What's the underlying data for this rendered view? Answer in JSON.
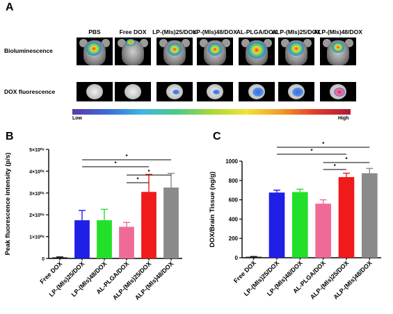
{
  "panel_a": {
    "letter": "A",
    "columns": [
      "PBS",
      "Free DOX",
      "LP-(Mls)25/DOX",
      "LP-(Mls)48/DOX",
      "AL-PLGA/DOX",
      "ALP-(Mls)25/DOX",
      "ALP-(Mls)48/DOX"
    ],
    "row_labels": [
      "Bioluminescence",
      "DOX fluorescence"
    ],
    "colorbar": {
      "low": "Low",
      "high": "High"
    }
  },
  "panel_b": {
    "letter": "B"
  },
  "panel_c": {
    "letter": "C"
  },
  "chart_data": [
    {
      "type": "bar",
      "categories": [
        "Free DOX",
        "LP-(Mls)25/DOX",
        "LP-(Mls)48/DOX",
        "AL-PLGA/DOX",
        "ALP-(Mls)25/DOX",
        "ALP-(Mls)48/DOX"
      ],
      "values": [
        0.05,
        1.75,
        1.75,
        1.45,
        3.05,
        3.25
      ],
      "errors": [
        0.02,
        0.45,
        0.5,
        0.2,
        0.8,
        0.65
      ],
      "colors": [
        "#1a1a1a",
        "#1f1fe6",
        "#22e02a",
        "#f06a98",
        "#f01a1a",
        "#8a8a8a"
      ],
      "ylabel": "Peak fluorescence intensity (p/s)",
      "ylim": [
        0,
        5
      ],
      "yticks": [
        0,
        1,
        2,
        3,
        4,
        5
      ],
      "ytick_labels": [
        "0",
        "1×10⁰⁸",
        "2×10⁰⁸",
        "3×10⁰⁸",
        "4×10⁰⁸",
        "5×10⁰⁸"
      ],
      "significance": [
        {
          "from": 1,
          "to": 5,
          "label": "*"
        },
        {
          "from": 1,
          "to": 4,
          "label": "*"
        },
        {
          "from": 3,
          "to": 5,
          "label": "*"
        },
        {
          "from": 3,
          "to": 4,
          "label": "*"
        }
      ]
    },
    {
      "type": "bar",
      "categories": [
        "Free DOX",
        "LP-(Mls)25/DOX",
        "LP-(Mls)48/DOX",
        "AL-PLGA/DOX",
        "ALP-(Mls)25/DOX",
        "ALP-(Mls)48/DOX"
      ],
      "values": [
        10,
        675,
        680,
        560,
        835,
        875
      ],
      "errors": [
        3,
        25,
        30,
        40,
        40,
        50
      ],
      "colors": [
        "#1a1a1a",
        "#1f1fe6",
        "#22e02a",
        "#f06a98",
        "#f01a1a",
        "#8a8a8a"
      ],
      "ylabel": "DOX/Brain Tissue (ng/g)",
      "ylim": [
        0,
        1000
      ],
      "yticks": [
        0,
        200,
        400,
        600,
        800,
        1000
      ],
      "ytick_labels": [
        "0",
        "200",
        "400",
        "600",
        "800",
        "1000"
      ],
      "significance": [
        {
          "from": 1,
          "to": 5,
          "label": "*"
        },
        {
          "from": 1,
          "to": 4,
          "label": "*"
        },
        {
          "from": 3,
          "to": 5,
          "label": "*"
        },
        {
          "from": 3,
          "to": 4,
          "label": "*"
        }
      ]
    }
  ]
}
